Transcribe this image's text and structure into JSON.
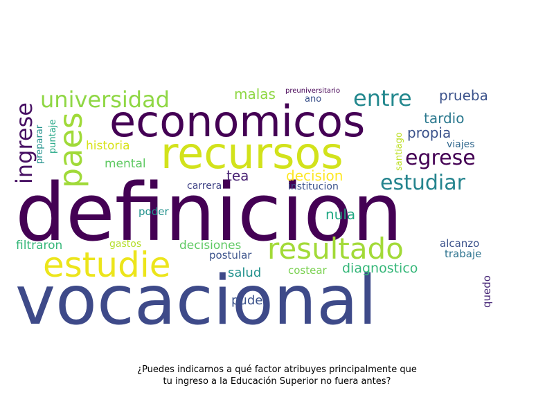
{
  "colors": {
    "background": "#ffffff",
    "palette": [
      "#440154",
      "#3b528b",
      "#21918c",
      "#5ec962",
      "#fde725"
    ]
  },
  "caption": {
    "line1": "¿Puedes indicarnos a qué factor atribuyes principalmente que",
    "line2": "tu ingreso a la Educación Superior no fuera antes?"
  },
  "wordcloud": {
    "words": [
      {
        "text": "definicion",
        "color": "#440154"
      },
      {
        "text": "vocacional",
        "color": "#3e4a89"
      },
      {
        "text": "recursos",
        "color": "#d2e21b"
      },
      {
        "text": "economicos",
        "color": "#440154"
      },
      {
        "text": "estudie",
        "color": "#ece51b"
      },
      {
        "text": "resultado",
        "color": "#a2da37"
      },
      {
        "text": "universidad",
        "color": "#8fd744"
      },
      {
        "text": "paes",
        "color": "#a0da39"
      },
      {
        "text": "ingrese",
        "color": "#471063"
      },
      {
        "text": "entre",
        "color": "#23888e"
      },
      {
        "text": "egrese",
        "color": "#440154"
      },
      {
        "text": "estudiar",
        "color": "#25848e"
      },
      {
        "text": "prueba",
        "color": "#3b528b"
      },
      {
        "text": "tardio",
        "color": "#2a788e"
      },
      {
        "text": "propia",
        "color": "#3b528b"
      },
      {
        "text": "malas",
        "color": "#8fd744"
      },
      {
        "text": "preuniversitario",
        "color": "#440154"
      },
      {
        "text": "ano",
        "color": "#3b528b"
      },
      {
        "text": "historia",
        "color": "#d8e219"
      },
      {
        "text": "mental",
        "color": "#5ec962"
      },
      {
        "text": "viajes",
        "color": "#31688e"
      },
      {
        "text": "santiago",
        "color": "#bddf26"
      },
      {
        "text": "preparar",
        "color": "#21918c"
      },
      {
        "text": "puntaje",
        "color": "#21a685"
      },
      {
        "text": "tea",
        "color": "#482173"
      },
      {
        "text": "decision",
        "color": "#fde725"
      },
      {
        "text": "carrera",
        "color": "#414487"
      },
      {
        "text": "institucion",
        "color": "#3b528b"
      },
      {
        "text": "poder",
        "color": "#21918c"
      },
      {
        "text": "nula",
        "color": "#22a884"
      },
      {
        "text": "filtraron",
        "color": "#35b779"
      },
      {
        "text": "gastos",
        "color": "#b5de2b"
      },
      {
        "text": "decisiones",
        "color": "#5ec962"
      },
      {
        "text": "postular",
        "color": "#3b528b"
      },
      {
        "text": "salud",
        "color": "#21918c"
      },
      {
        "text": "costear",
        "color": "#7ad151"
      },
      {
        "text": "diagnostico",
        "color": "#35b779"
      },
      {
        "text": "alcanzo",
        "color": "#3b528b"
      },
      {
        "text": "trabaje",
        "color": "#2c728e"
      },
      {
        "text": "quedo",
        "color": "#482878"
      },
      {
        "text": "pude",
        "color": "#3b528b"
      }
    ]
  }
}
